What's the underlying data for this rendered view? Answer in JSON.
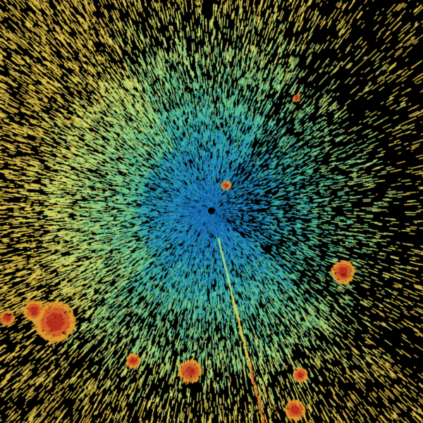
{
  "radar": {
    "background": "#000000",
    "palette": [
      "#1565a8",
      "#1f86c0",
      "#2aa1b8",
      "#4dbfa0",
      "#7fd08a",
      "#b4dc78",
      "#dde06a",
      "#e8c84a",
      "#e09a30",
      "#d2602a",
      "#b8301e"
    ],
    "origin_marker": "radar-site",
    "features": [
      "reflectivity-field",
      "radial-spike",
      "storm-cells"
    ]
  }
}
